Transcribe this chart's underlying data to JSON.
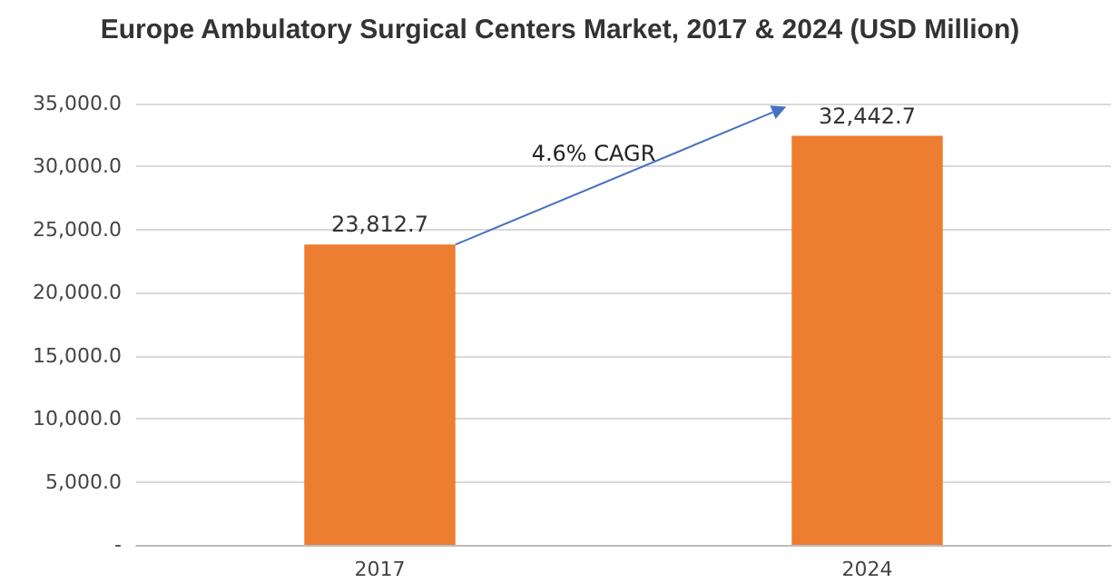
{
  "chart_data": {
    "type": "bar",
    "title": "Europe Ambulatory Surgical Centers Market, 2017 & 2024 (USD Million)",
    "categories": [
      "2017",
      "2024"
    ],
    "values": [
      23812.7,
      32442.7
    ],
    "value_labels": [
      "23,812.7",
      "32,442.7"
    ],
    "color": "#ed7d31",
    "ylim": [
      0,
      35000
    ],
    "yticks": [
      {
        "value": 0,
        "label": "-"
      },
      {
        "value": 5000,
        "label": "5,000.0"
      },
      {
        "value": 10000,
        "label": "10,000.0"
      },
      {
        "value": 15000,
        "label": "15,000.0"
      },
      {
        "value": 20000,
        "label": "20,000.0"
      },
      {
        "value": 25000,
        "label": "25,000.0"
      },
      {
        "value": 30000,
        "label": "30,000.0"
      },
      {
        "value": 35000,
        "label": "35,000.0"
      }
    ],
    "grid": "y",
    "annotations": [
      "4.6% CAGR"
    ]
  }
}
